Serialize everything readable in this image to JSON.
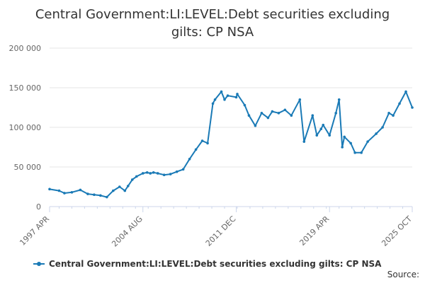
{
  "title_line1": "Central Government:LI:LEVEL:Debt securities excluding",
  "title_line2": "gilts: CP NSA",
  "source_label": "Source:",
  "colors": {
    "series": "#1a7ab6",
    "grid": "#e6e6e6",
    "axis_text": "#666666"
  },
  "chart_data": {
    "type": "line",
    "title": "Central Government:LI:LEVEL:Debt securities excluding gilts: CP NSA",
    "ylim": [
      0,
      200000
    ],
    "y_ticks": [
      0,
      50000,
      100000,
      150000,
      200000
    ],
    "y_tick_labels": [
      "0",
      "50 000",
      "100 000",
      "150 000",
      "200 000"
    ],
    "x_tick_labels": [
      "1997 APR",
      "2004 AUG",
      "2011 DEC",
      "2019 APR",
      "2025 OCT"
    ],
    "x_tick_dates": [
      "1997-04",
      "2004-08",
      "2011-12",
      "2019-04",
      "2025-10"
    ],
    "grid": true,
    "legend_position": "bottom-left",
    "series": [
      {
        "name": "Central Government:LI:LEVEL:Debt securities excluding gilts: CP NSA",
        "x": [
          "1997-04",
          "1998-01",
          "1998-06",
          "1999-01",
          "1999-09",
          "2000-04",
          "2000-10",
          "2001-04",
          "2001-10",
          "2002-04",
          "2002-10",
          "2003-03",
          "2003-06",
          "2003-10",
          "2004-02",
          "2004-08",
          "2004-12",
          "2005-03",
          "2005-06",
          "2005-10",
          "2006-04",
          "2006-10",
          "2007-04",
          "2007-10",
          "2008-04",
          "2008-10",
          "2009-04",
          "2009-09",
          "2010-02",
          "2010-04",
          "2010-10",
          "2011-01",
          "2011-04",
          "2011-12",
          "2012-01",
          "2012-08",
          "2012-12",
          "2013-06",
          "2013-12",
          "2014-06",
          "2014-10",
          "2015-04",
          "2015-10",
          "2016-04",
          "2016-12",
          "2017-04",
          "2017-12",
          "2018-04",
          "2018-08",
          "2018-10",
          "2019-04",
          "2019-10",
          "2020-01",
          "2020-04",
          "2020-06",
          "2020-12",
          "2021-04",
          "2021-10",
          "2022-04",
          "2022-12",
          "2023-06",
          "2023-12",
          "2024-04",
          "2024-10",
          "2025-04",
          "2025-10"
        ],
        "y": [
          22000,
          20000,
          17000,
          18000,
          21000,
          16000,
          15000,
          14000,
          12000,
          20000,
          25000,
          20000,
          26000,
          34000,
          38000,
          42000,
          43000,
          42000,
          43000,
          42000,
          40000,
          41000,
          44000,
          47000,
          60000,
          72000,
          83000,
          80000,
          130000,
          135000,
          145000,
          135000,
          140000,
          138000,
          142000,
          128000,
          115000,
          102000,
          118000,
          112000,
          120000,
          118000,
          122000,
          115000,
          135000,
          82000,
          115000,
          90000,
          98000,
          103000,
          90000,
          118000,
          135000,
          75000,
          88000,
          80000,
          68000,
          68000,
          82000,
          92000,
          100000,
          118000,
          115000,
          130000,
          145000,
          125000
        ]
      }
    ]
  },
  "legend_label": "Central Government:LI:LEVEL:Debt securities excluding gilts: CP NSA"
}
